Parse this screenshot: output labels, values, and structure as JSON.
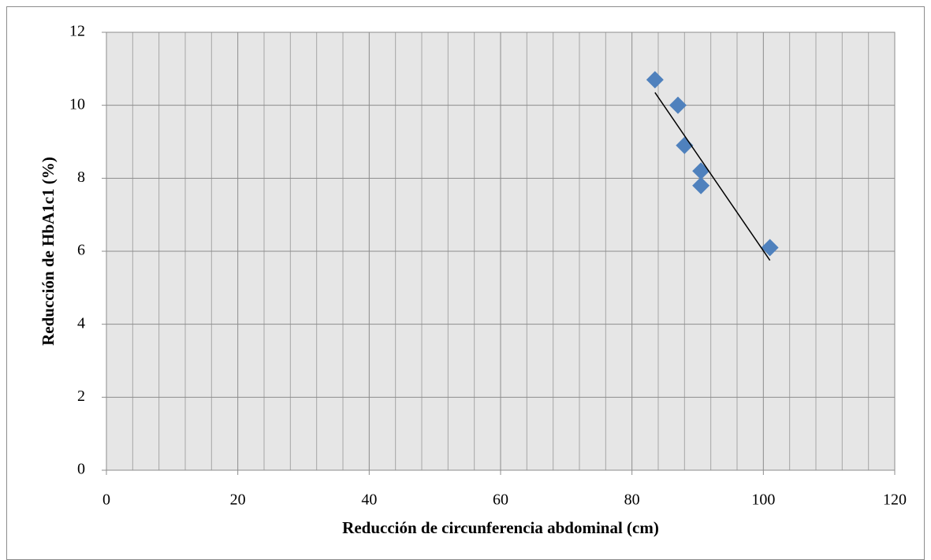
{
  "chart_data": {
    "type": "scatter",
    "x_label": "Reducción de circunferencia abdominal (cm)",
    "y_label": "Reducción de HbA1c1 (%)",
    "series": [
      {
        "color": "#4f81bd",
        "x": [
          83.5,
          87,
          88,
          90.5,
          90.5,
          101
        ],
        "values": [
          10.7,
          10.0,
          8.9,
          8.2,
          7.8,
          6.1
        ]
      }
    ],
    "trendline": {
      "color": "#000000",
      "x": [
        83.5,
        101
      ],
      "y": [
        10.35,
        5.75
      ]
    },
    "xlim": [
      0,
      120
    ],
    "xticks": [
      0,
      20,
      40,
      60,
      80,
      100,
      120
    ],
    "ylim": [
      0,
      12
    ],
    "yticks": [
      0,
      2,
      4,
      6,
      8,
      10,
      12
    ],
    "grid": true,
    "plot_background": "#e6e6e6"
  }
}
